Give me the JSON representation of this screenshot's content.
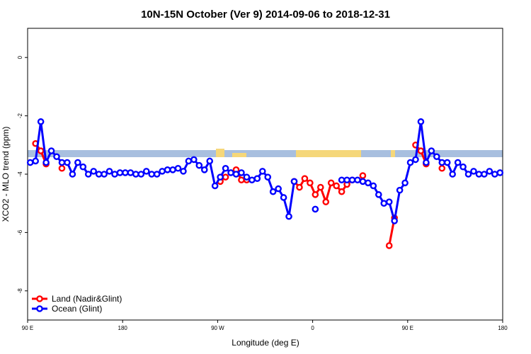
{
  "chart_data": {
    "type": "line",
    "title": "10N-15N October (Ver 9)   2014-09-06 to 2018-12-31",
    "x_label": "Longitude (deg E)",
    "y_label": "XCO2 - MLO trend (ppm)",
    "x": [
      92.5,
      97.5,
      102.5,
      107.5,
      112.5,
      117.5,
      122.5,
      127.5,
      132.5,
      137.5,
      142.5,
      147.5,
      152.5,
      157.5,
      162.5,
      167.5,
      172.5,
      177.5,
      182.5,
      187.5,
      192.5,
      197.5,
      202.5,
      207.5,
      212.5,
      217.5,
      222.5,
      227.5,
      232.5,
      237.5,
      242.5,
      247.5,
      252.5,
      257.5,
      262.5,
      267.5,
      272.5,
      277.5,
      282.5,
      287.5,
      292.5,
      297.5,
      302.5,
      307.5,
      312.5,
      317.5,
      322.5,
      327.5,
      332.5,
      337.5,
      342.5,
      347.5,
      352.5,
      357.5,
      362.5,
      367.5,
      372.5,
      377.5,
      382.5,
      387.5,
      392.5,
      397.5,
      402.5,
      407.5,
      412.5,
      417.5,
      422.5,
      427.5,
      432.5,
      437.5,
      442.5,
      447.5,
      452.5,
      457.5,
      462.5,
      467.5,
      472.5,
      477.5,
      482.5,
      487.5,
      492.5,
      497.5,
      502.5,
      507.5,
      512.5,
      517.5,
      522.5,
      527.5,
      532.5,
      537.5
    ],
    "series": [
      {
        "name": "Land (Nadir&Glint)",
        "color": "#ff0000",
        "values": [
          null,
          -2.95,
          -3.2,
          -3.65,
          null,
          null,
          -3.8,
          null,
          null,
          null,
          null,
          null,
          null,
          null,
          null,
          null,
          null,
          null,
          null,
          null,
          null,
          null,
          null,
          null,
          null,
          null,
          null,
          null,
          null,
          null,
          null,
          null,
          null,
          null,
          null,
          null,
          -4.25,
          -4.1,
          null,
          -3.85,
          -4.2,
          -4.2,
          null,
          null,
          null,
          null,
          null,
          null,
          null,
          null,
          -4.25,
          -4.45,
          -4.15,
          -4.3,
          -4.7,
          -4.45,
          -4.95,
          -4.3,
          -4.4,
          -4.6,
          -4.35,
          -4.2,
          null,
          -4.05,
          null,
          null,
          null,
          null,
          -6.45,
          -5.5,
          null,
          null,
          null,
          -3.0,
          -3.2,
          -3.65,
          null,
          null,
          -3.8,
          null,
          null,
          null,
          null,
          null,
          null,
          null,
          null,
          null,
          null,
          null
        ]
      },
      {
        "name": "Ocean (Glint)",
        "color": "#0000ff",
        "values": [
          -3.6,
          -3.55,
          -2.2,
          -3.6,
          -3.2,
          -3.4,
          -3.6,
          -3.6,
          -4.0,
          -3.6,
          -3.75,
          -4.0,
          -3.9,
          -4.0,
          -4.0,
          -3.9,
          -4.0,
          -3.95,
          -3.95,
          -3.95,
          -4.0,
          -4.0,
          -3.9,
          -4.0,
          -4.0,
          -3.9,
          -3.85,
          -3.85,
          -3.8,
          -3.9,
          -3.55,
          -3.5,
          -3.7,
          -3.85,
          -3.55,
          -4.4,
          -4.1,
          -3.8,
          -3.95,
          -4.0,
          -3.95,
          -4.1,
          -4.2,
          -4.15,
          -3.9,
          -4.1,
          -4.6,
          -4.5,
          -4.8,
          -5.45,
          -4.25,
          null,
          null,
          null,
          -5.2,
          null,
          null,
          null,
          null,
          -4.2,
          -4.2,
          -4.2,
          -4.2,
          -4.25,
          -4.3,
          -4.4,
          -4.7,
          -5.0,
          -4.95,
          -5.6,
          -4.55,
          -4.3,
          -3.6,
          -3.5,
          -2.2,
          -3.6,
          -3.2,
          -3.4,
          -3.6,
          -3.6,
          -4.0,
          -3.6,
          -3.75,
          -4.0,
          -3.9,
          -4.0,
          -4.0,
          -3.9,
          -4.0,
          -3.95
        ]
      }
    ],
    "xlim": [
      90,
      540
    ],
    "xticks": [
      {
        "value": 90,
        "label": "90 E"
      },
      180,
      {
        "value": 270,
        "label": "90 W"
      },
      {
        "value": 360,
        "label": "0"
      },
      {
        "value": 450,
        "label": "90 E"
      },
      {
        "value": 540,
        "label": "180"
      }
    ],
    "ylim": [
      -9,
      1
    ],
    "yticks": [
      0,
      -2,
      -4,
      -6,
      -8
    ],
    "legend": "bottom-left"
  }
}
